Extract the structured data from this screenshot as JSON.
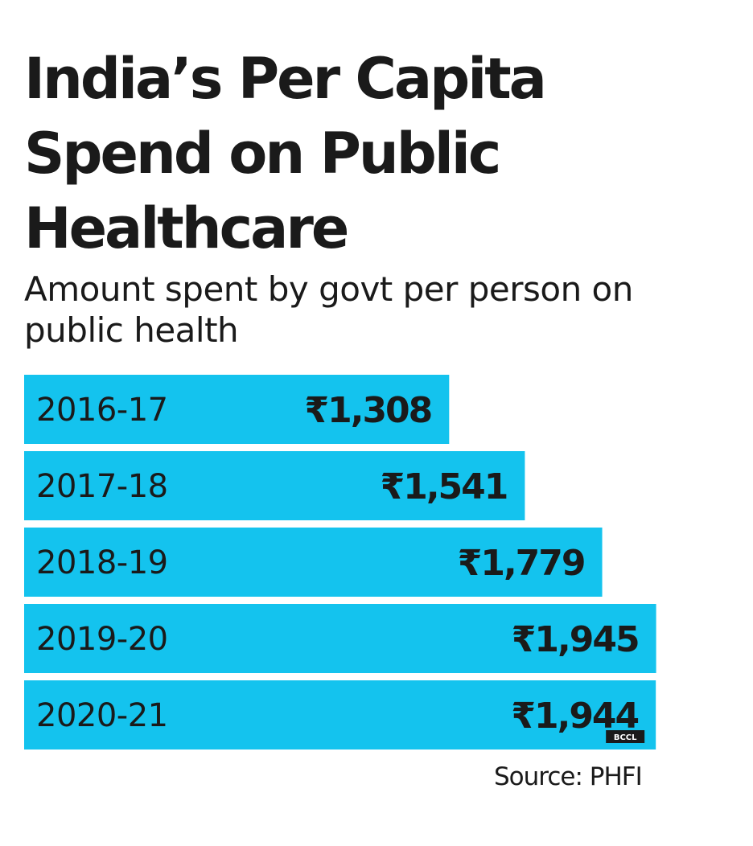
{
  "chart_data": {
    "type": "bar",
    "orientation": "horizontal",
    "title": "India’s Per Capita Spend on Public Healthcare",
    "subtitle": "Amount spent by govt per person on public health",
    "categories": [
      "2016-17",
      "2017-18",
      "2018-19",
      "2019-20",
      "2020-21"
    ],
    "values": [
      1308,
      1541,
      1779,
      1945,
      1944
    ],
    "value_labels": [
      "₹1,308",
      "₹1,541",
      "₹1,779",
      "₹1,945",
      "₹1,944"
    ],
    "currency": "₹",
    "xlim": [
      0,
      2050
    ],
    "grid": false,
    "legend": "none",
    "bar_color": "#14c3ee",
    "source": "Source: PHFI",
    "credit": "BCCL"
  }
}
